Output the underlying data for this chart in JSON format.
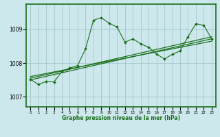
{
  "title": "Graphe pression niveau de la mer (hPa)",
  "bg_color": "#cce8ec",
  "grid_color": "#b0c8cc",
  "line_color": "#1a6e1a",
  "xlim": [
    -0.5,
    23.5
  ],
  "ylim": [
    1006.7,
    1009.75
  ],
  "yticks": [
    1007,
    1008,
    1009
  ],
  "xticks": [
    0,
    1,
    2,
    3,
    4,
    5,
    6,
    7,
    8,
    9,
    10,
    11,
    12,
    13,
    14,
    15,
    16,
    17,
    18,
    19,
    20,
    21,
    22,
    23
  ],
  "main_series": [
    1007.52,
    1007.37,
    1007.45,
    1007.44,
    1007.75,
    1007.85,
    1007.93,
    1008.42,
    1009.27,
    1009.35,
    1009.18,
    1009.07,
    1008.62,
    1008.72,
    1008.57,
    1008.47,
    1008.27,
    1008.12,
    1008.26,
    1008.36,
    1008.78,
    1009.17,
    1009.12,
    1008.72
  ],
  "trend_line1_x": [
    0,
    23
  ],
  "trend_line1_y": [
    1007.5,
    1008.72
  ],
  "trend_line2_x": [
    0,
    23
  ],
  "trend_line2_y": [
    1007.55,
    1008.78
  ],
  "trend_line3_x": [
    0,
    23
  ],
  "trend_line3_y": [
    1007.6,
    1008.65
  ]
}
